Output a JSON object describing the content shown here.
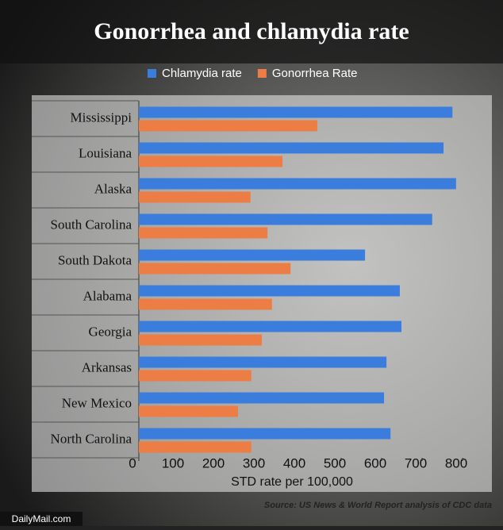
{
  "chart_data": {
    "type": "bar",
    "orientation": "horizontal",
    "title": "Gonorrhea and chlamydia rate",
    "categories": [
      "Mississippi",
      "Louisiana",
      "Alaska",
      "South Carolina",
      "South Dakota",
      "Alabama",
      "Georgia",
      "Arkansas",
      "New Mexico",
      "North Carolina"
    ],
    "series": [
      {
        "name": "Chlamydia rate",
        "color": "#3b7ddd",
        "values": [
          775,
          753,
          784,
          725,
          559,
          645,
          649,
          612,
          606,
          622
        ]
      },
      {
        "name": "Gonorrhea Rate",
        "color": "#ec7d45",
        "values": [
          441,
          355,
          276,
          318,
          375,
          329,
          304,
          278,
          245,
          278
        ]
      }
    ],
    "xlim": [
      0,
      800
    ],
    "xticks": [
      0,
      100,
      200,
      300,
      400,
      500,
      600,
      700,
      800
    ],
    "x_label": "STD rate per 100,000",
    "source": "Source: US News & World Report analysis of CDC data",
    "logo": "DailyMail.com",
    "legend": "top"
  }
}
